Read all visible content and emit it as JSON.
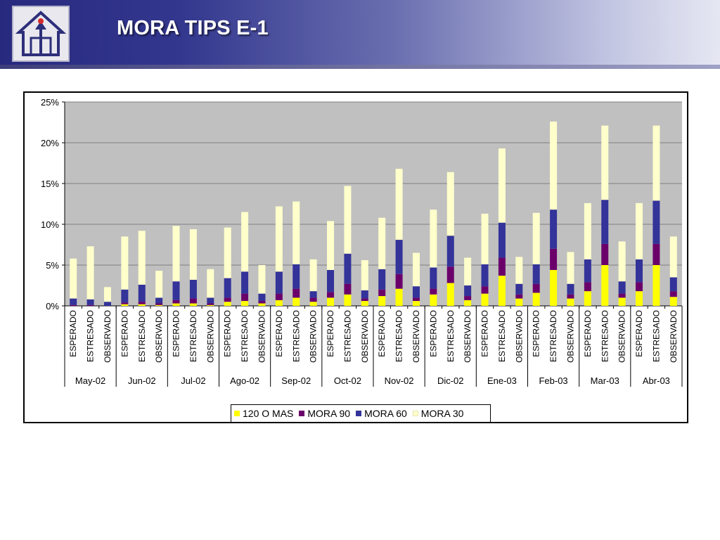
{
  "header": {
    "title": "MORA TIPS E-1"
  },
  "colors": {
    "mora120": "#ffff00",
    "mora90": "#6b006b",
    "mora60": "#33339a",
    "mora30": "#ffffcc",
    "plot_bg": "#c0c0c0",
    "gridline": "#808080"
  },
  "legend": {
    "items": [
      {
        "label": "120 O MAS",
        "color": "#ffff00"
      },
      {
        "label": "MORA 90",
        "color": "#6b006b"
      },
      {
        "label": "MORA 60",
        "color": "#33339a"
      },
      {
        "label": "MORA 30",
        "color": "#ffffcc"
      }
    ]
  },
  "chart_data": {
    "type": "bar",
    "stacked": true,
    "ylim": [
      0,
      25
    ],
    "yticks": [
      "0%",
      "5%",
      "10%",
      "15%",
      "20%",
      "25%"
    ],
    "ytick_values": [
      0,
      5,
      10,
      15,
      20,
      25
    ],
    "grid": true,
    "legend_position": "bottom",
    "groups": [
      "May-02",
      "Jun-02",
      "Jul-02",
      "Ago-02",
      "Sep-02",
      "Oct-02",
      "Nov-02",
      "Dic-02",
      "Ene-03",
      "Feb-03",
      "Mar-03",
      "Abr-03"
    ],
    "subcategories": [
      "ESPERADO",
      "ESTRESADO",
      "OBSERVADO"
    ],
    "series": [
      {
        "name": "120 O MAS",
        "values": [
          0,
          0,
          0,
          0.2,
          0.2,
          0.1,
          0.3,
          0.3,
          0.1,
          0.5,
          0.6,
          0.3,
          0.7,
          1.0,
          0.5,
          1.0,
          1.4,
          0.6,
          1.2,
          2.1,
          0.6,
          1.4,
          2.8,
          0.7,
          1.5,
          3.7,
          0.9,
          1.6,
          4.4,
          0.9,
          1.8,
          5.0,
          1.0,
          1.8,
          5.0,
          1.1
        ]
      },
      {
        "name": "MORA 90",
        "values": [
          0.1,
          0.1,
          0,
          0.2,
          0.3,
          0.2,
          0.4,
          0.6,
          0.2,
          0.5,
          0.9,
          0.3,
          0.8,
          1.1,
          0.5,
          0.7,
          1.3,
          0.3,
          0.8,
          1.8,
          0.4,
          0.7,
          2.0,
          0.5,
          0.9,
          2.2,
          0.5,
          1.1,
          2.6,
          0.5,
          1.1,
          2.6,
          0.5,
          1.1,
          2.6,
          0.7
        ]
      },
      {
        "name": "MORA 60",
        "values": [
          0.8,
          0.7,
          0.5,
          1.6,
          2.1,
          0.7,
          2.3,
          2.3,
          0.7,
          2.4,
          2.7,
          0.9,
          2.7,
          3.0,
          0.8,
          2.7,
          3.7,
          1.0,
          2.5,
          4.2,
          1.4,
          2.6,
          3.8,
          1.3,
          2.7,
          4.3,
          1.3,
          2.4,
          4.8,
          1.3,
          2.8,
          5.4,
          1.5,
          2.8,
          5.3,
          1.7
        ]
      },
      {
        "name": "MORA 30",
        "values": [
          4.9,
          6.5,
          1.8,
          6.5,
          6.6,
          3.3,
          6.8,
          6.2,
          3.5,
          6.2,
          7.3,
          3.5,
          8.0,
          7.7,
          3.9,
          6.0,
          8.3,
          3.7,
          6.3,
          8.7,
          4.1,
          7.1,
          7.8,
          3.4,
          6.2,
          9.1,
          3.3,
          6.3,
          10.8,
          3.9,
          6.9,
          9.1,
          4.9,
          6.9,
          9.2,
          5.0
        ]
      }
    ]
  }
}
